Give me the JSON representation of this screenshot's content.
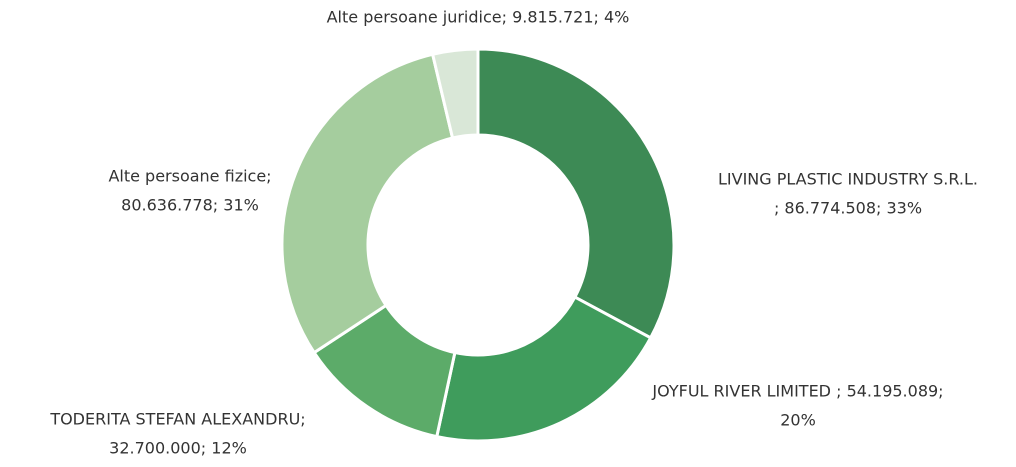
{
  "chart_data": {
    "type": "donut",
    "values": [
      86774508,
      54195089,
      32700000,
      80636778,
      9815721
    ],
    "value_labels": [
      [
        "LIVING PLASTIC INDUSTRY S.R.L.",
        "; 86.774.508; 33%"
      ],
      [
        "JOYFUL RIVER LIMITED ; 54.195.089;",
        "20%"
      ],
      [
        "TODERITA STEFAN ALEXANDRU;",
        "32.700.000; 12%"
      ],
      [
        "Alte persoane fizice;",
        "80.636.778; 31%"
      ],
      [
        "Alte persoane juridice; 9.815.721; 4%"
      ]
    ],
    "colors": [
      "#3d8a55",
      "#3f9c5c",
      "#5cab69",
      "#a5cd9e",
      "#d9e7d7"
    ]
  }
}
